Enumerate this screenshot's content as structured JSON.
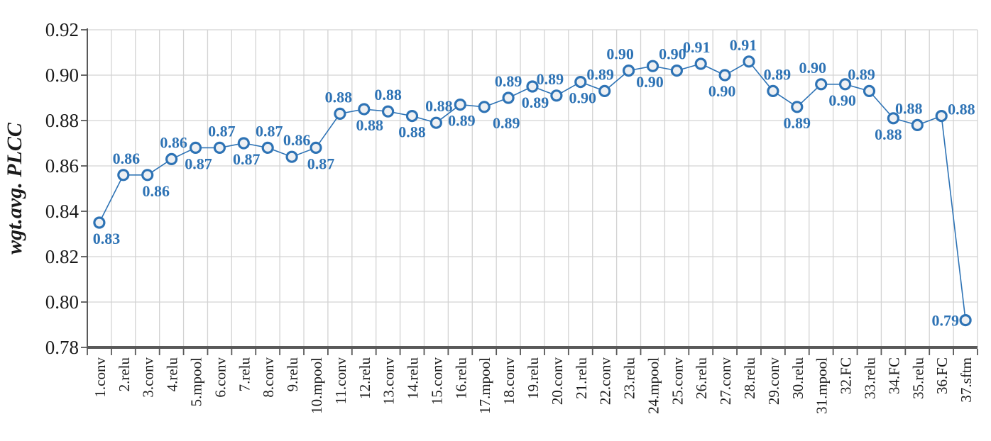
{
  "chart_data": {
    "type": "line",
    "title": "",
    "xlabel": "",
    "ylabel": "wgt.avg. PLCC",
    "ylim": [
      0.78,
      0.92
    ],
    "y_ticks": [
      "0.78",
      "0.80",
      "0.82",
      "0.84",
      "0.86",
      "0.88",
      "0.90",
      "0.92"
    ],
    "grid": "both",
    "legend_position": "none",
    "categories": [
      "1.conv",
      "2.relu",
      "3.conv",
      "4.relu",
      "5.mpool",
      "6.conv",
      "7.relu",
      "8.conv",
      "9.relu",
      "10.mpool",
      "11.conv",
      "12.relu",
      "13.conv",
      "14.relu",
      "15.conv",
      "16.relu",
      "17.mpool",
      "18.conv",
      "19.relu",
      "20.conv",
      "21.relu",
      "22.conv",
      "23.relu",
      "24.mpool",
      "25.conv",
      "26.relu",
      "27.conv",
      "28.relu",
      "29.conv",
      "30.relu",
      "31.mpool",
      "32.FC",
      "33.relu",
      "34.FC",
      "35.relu",
      "36.FC",
      "37.sftm"
    ],
    "series": [
      {
        "name": "wgt.avg. PLCC",
        "values": [
          0.835,
          0.856,
          0.856,
          0.863,
          0.868,
          0.868,
          0.87,
          0.868,
          0.864,
          0.868,
          0.883,
          0.885,
          0.884,
          0.882,
          0.879,
          0.887,
          0.886,
          0.89,
          0.895,
          0.891,
          0.897,
          0.893,
          0.902,
          0.904,
          0.902,
          0.905,
          0.9,
          0.906,
          0.893,
          0.886,
          0.896,
          0.896,
          0.893,
          0.881,
          0.878,
          0.882,
          0.792
        ],
        "point_labels": [
          "0.83",
          "0.86",
          "0.86",
          "0.86",
          "0.87",
          "0.87",
          "0.87",
          "0.87",
          "0.86",
          "0.87",
          "0.88",
          "0.88",
          "0.88",
          "0.88",
          "0.88",
          "0.89",
          "0.89",
          "0.89",
          "0.89",
          "0.89",
          "0.90",
          "0.89",
          "0.90",
          "0.90",
          "0.90",
          "0.91",
          "0.90",
          "0.91",
          "0.89",
          "0.89",
          "0.90",
          "0.90",
          "0.89",
          "0.88",
          "0.88",
          "0.88",
          "0.79"
        ],
        "label_pos": [
          "below",
          "above",
          "below",
          "above",
          "below",
          "above",
          "below",
          "above",
          "above",
          "below",
          "above",
          "below",
          "above",
          "below",
          "above",
          "below",
          "below",
          "above",
          "below",
          "above",
          "below",
          "above",
          "above",
          "below",
          "above",
          "above",
          "below",
          "above",
          "above",
          "below",
          "above",
          "below",
          "above",
          "below",
          "above",
          "right",
          "left"
        ],
        "label_dx": [
          10,
          4,
          12,
          3,
          4,
          3,
          4,
          2,
          7,
          7,
          -2,
          8,
          0,
          0,
          4,
          2,
          31,
          0,
          4,
          -9,
          3,
          -6,
          -12,
          -4,
          -6,
          -6,
          -4,
          -8,
          6,
          0,
          -12,
          -4,
          -11,
          -7,
          -12,
          0,
          0
        ]
      }
    ],
    "colors": {
      "line": "#2e73b5",
      "marker_stroke": "#2e73b5",
      "marker_fill": "#eef0f3",
      "data_label": "#2e73b5",
      "grid": "#d3d3d3",
      "axis": "#595959",
      "tick_text": "#1a1a1a"
    }
  }
}
